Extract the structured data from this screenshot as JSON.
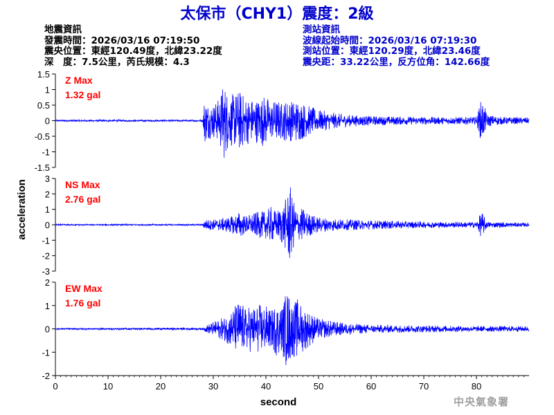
{
  "title": "太保市（CHY1）震度：2級",
  "earthquake_info": {
    "heading": "地震資訊",
    "origin_time": "發震時間：2026/03/16 07:19:50",
    "epicenter": "震央位置：東經120.49度，北緯23.22度",
    "depth_magnitude": "深　度：7.5公里，芮氏規模：4.3"
  },
  "station_info": {
    "heading": "測站資訊",
    "wave_start": "波線起始時間：2026/03/16 07:19:30",
    "station_location": "測站位置：東經120.29度，北緯23.46度",
    "distance_azimuth": "震央距：33.22公里，反方位角：142.66度"
  },
  "agency": "中央氣象署",
  "colors": {
    "trace": "#0000ff",
    "max_label": "#ff0000",
    "title": "#0000cc"
  },
  "chart_data": {
    "type": "line",
    "xlabel": "second",
    "ylabel": "acceleration",
    "xlim": [
      0,
      90
    ],
    "x_ticks": [
      "0",
      "10",
      "20",
      "30",
      "40",
      "50",
      "60",
      "70",
      "80"
    ],
    "x_tick_values": [
      0,
      10,
      20,
      30,
      40,
      50,
      60,
      70,
      80
    ],
    "grid": false,
    "panels": [
      {
        "component": "Z",
        "max_label": "Z Max",
        "max_value": "1.32 gal",
        "ylim": [
          -1.5,
          1.5
        ],
        "y_ticks": [
          "-1.5",
          "-1",
          "-0.5",
          "0",
          "0.5",
          "1",
          "1.5"
        ],
        "y_tick_values": [
          -1.5,
          -1,
          -0.5,
          0,
          0.5,
          1,
          1.5
        ],
        "envelope": [
          [
            0,
            0.03
          ],
          [
            28,
            0.03
          ],
          [
            28.3,
            0.75
          ],
          [
            29,
            0.6
          ],
          [
            30,
            0.55
          ],
          [
            31,
            0.7
          ],
          [
            32,
            1.3
          ],
          [
            33,
            0.8
          ],
          [
            34,
            0.9
          ],
          [
            35,
            1.0
          ],
          [
            36,
            0.8
          ],
          [
            37,
            0.75
          ],
          [
            38,
            0.7
          ],
          [
            39,
            0.8
          ],
          [
            40,
            0.85
          ],
          [
            41,
            0.6
          ],
          [
            42,
            0.7
          ],
          [
            43,
            0.6
          ],
          [
            44,
            0.7
          ],
          [
            45,
            0.65
          ],
          [
            46,
            0.7
          ],
          [
            47,
            0.6
          ],
          [
            48,
            0.5
          ],
          [
            50,
            0.35
          ],
          [
            55,
            0.2
          ],
          [
            60,
            0.15
          ],
          [
            70,
            0.12
          ],
          [
            80,
            0.12
          ],
          [
            81,
            0.75
          ],
          [
            82,
            0.2
          ],
          [
            85,
            0.12
          ],
          [
            90,
            0.1
          ]
        ]
      },
      {
        "component": "NS",
        "max_label": "NS Max",
        "max_value": "2.76 gal",
        "ylim": [
          -3,
          3
        ],
        "y_ticks": [
          "-3",
          "-2",
          "-1",
          "0",
          "1",
          "2",
          "3"
        ],
        "y_tick_values": [
          -3,
          -2,
          -1,
          0,
          1,
          2,
          3
        ],
        "envelope": [
          [
            0,
            0.04
          ],
          [
            28,
            0.05
          ],
          [
            28.3,
            0.35
          ],
          [
            30,
            0.35
          ],
          [
            32,
            0.45
          ],
          [
            34,
            0.6
          ],
          [
            35,
            0.9
          ],
          [
            36,
            0.6
          ],
          [
            38,
            0.8
          ],
          [
            40,
            0.9
          ],
          [
            41,
            1.2
          ],
          [
            42,
            0.9
          ],
          [
            43,
            1.3
          ],
          [
            44,
            1.8
          ],
          [
            44.5,
            2.76
          ],
          [
            45,
            1.8
          ],
          [
            46,
            1.0
          ],
          [
            47,
            1.1
          ],
          [
            48,
            0.8
          ],
          [
            50,
            0.5
          ],
          [
            55,
            0.35
          ],
          [
            60,
            0.3
          ],
          [
            70,
            0.2
          ],
          [
            80,
            0.18
          ],
          [
            81,
            0.9
          ],
          [
            82,
            0.2
          ],
          [
            90,
            0.12
          ]
        ]
      },
      {
        "component": "EW",
        "max_label": "EW Max",
        "max_value": "1.76 gal",
        "ylim": [
          -2,
          2
        ],
        "y_ticks": [
          "-2",
          "-1",
          "0",
          "1",
          "2"
        ],
        "y_tick_values": [
          -2,
          -1,
          0,
          1,
          2
        ],
        "envelope": [
          [
            0,
            0.03
          ],
          [
            28,
            0.05
          ],
          [
            29,
            0.2
          ],
          [
            30,
            0.3
          ],
          [
            32,
            0.5
          ],
          [
            33,
            0.7
          ],
          [
            34,
            1.0
          ],
          [
            35,
            1.3
          ],
          [
            36,
            0.9
          ],
          [
            37,
            1.0
          ],
          [
            38,
            1.0
          ],
          [
            39,
            1.1
          ],
          [
            40,
            1.0
          ],
          [
            41,
            0.8
          ],
          [
            42,
            1.2
          ],
          [
            43,
            1.0
          ],
          [
            44,
            1.76
          ],
          [
            45,
            1.2
          ],
          [
            46,
            1.3
          ],
          [
            47,
            1.0
          ],
          [
            48,
            0.8
          ],
          [
            50,
            0.45
          ],
          [
            55,
            0.25
          ],
          [
            60,
            0.18
          ],
          [
            70,
            0.15
          ],
          [
            80,
            0.12
          ],
          [
            90,
            0.12
          ]
        ]
      }
    ]
  }
}
